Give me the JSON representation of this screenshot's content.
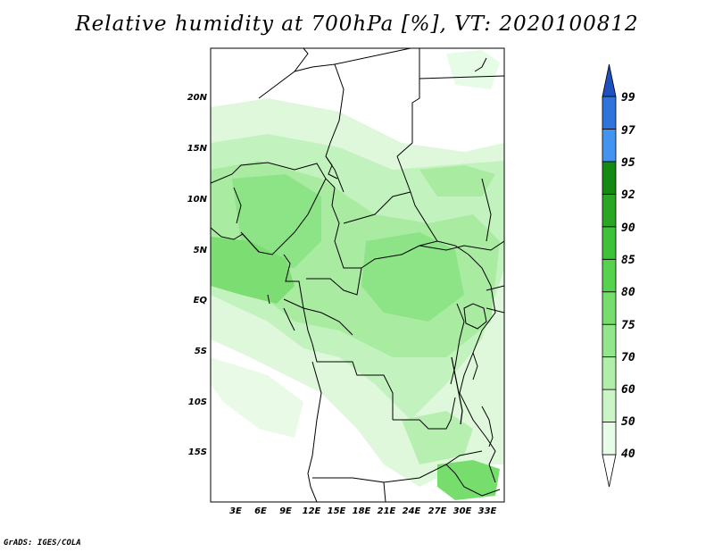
{
  "title": "Relative humidity at 700hPa [%], VT: 2020100812",
  "credit": "GrADS: IGES/COLA",
  "map": {
    "lat_ticks": [
      "20N",
      "15N",
      "10N",
      "5N",
      "EQ",
      "5S",
      "10S",
      "15S"
    ],
    "lon_ticks": [
      "3E",
      "6E",
      "9E",
      "12E",
      "15E",
      "18E",
      "21E",
      "24E",
      "27E",
      "30E",
      "33E"
    ],
    "lon_range": [
      0,
      35
    ],
    "lat_range": [
      -20,
      24.5
    ]
  },
  "colorbar": {
    "labels": [
      "40",
      "50",
      "60",
      "70",
      "75",
      "80",
      "85",
      "90",
      "92",
      "95",
      "97",
      "99"
    ],
    "colors": [
      "#ffffff",
      "#e6fce6",
      "#cbf5c7",
      "#b0eeaa",
      "#93e68c",
      "#77de6e",
      "#57d24f",
      "#3ec237",
      "#2aa624",
      "#148a12",
      "#4394f0",
      "#2f74dc",
      "#1e50c0"
    ]
  }
}
